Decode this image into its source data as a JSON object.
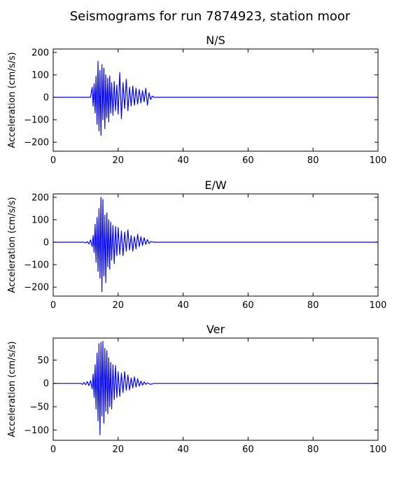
{
  "figure": {
    "title": "Seismograms for run 7874923, station moor"
  },
  "colors": {
    "trace": "#0000ff",
    "axes": "#000000",
    "background": "#ffffff"
  },
  "chart_data": [
    {
      "type": "line",
      "title": "N/S",
      "xlabel": "",
      "ylabel": "Acceleration (cm/s/s)",
      "xlim": [
        0,
        100
      ],
      "ylim": [
        -240,
        215
      ],
      "xticks": [
        0,
        20,
        40,
        60,
        80,
        100
      ],
      "yticks": [
        -200,
        -100,
        0,
        100,
        200
      ],
      "grid": false,
      "series": [
        {
          "x": [
            0,
            11.5,
            12.0,
            12.3,
            12.6,
            12.9,
            13.2,
            13.5,
            13.8,
            14.1,
            14.4,
            14.7,
            15.0,
            15.3,
            15.6,
            15.9,
            16.2,
            16.5,
            16.8,
            17.1,
            17.4,
            17.7,
            18.0,
            18.4,
            18.8,
            19.2,
            19.6,
            20.0,
            20.5,
            21.0,
            21.5,
            22.0,
            22.5,
            23.0,
            23.5,
            24.0,
            24.5,
            25.0,
            25.5,
            26.0,
            26.5,
            27.0,
            27.5,
            28.0,
            28.5,
            29.0,
            29.5,
            30.0,
            30.5,
            31.0,
            100
          ],
          "y": [
            0,
            0,
            45,
            -40,
            60,
            -70,
            95,
            -120,
            160,
            -150,
            120,
            -170,
            145,
            -100,
            130,
            -140,
            100,
            -90,
            85,
            -110,
            95,
            -70,
            65,
            -80,
            70,
            -60,
            55,
            -75,
            110,
            -95,
            65,
            -50,
            80,
            -60,
            45,
            -40,
            50,
            -35,
            40,
            -30,
            35,
            -25,
            30,
            -20,
            40,
            -35,
            20,
            -10,
            5,
            0,
            0
          ]
        }
      ]
    },
    {
      "type": "line",
      "title": "E/W",
      "xlabel": "",
      "ylabel": "Acceleration (cm/s/s)",
      "xlim": [
        0,
        100
      ],
      "ylim": [
        -240,
        215
      ],
      "xticks": [
        0,
        20,
        40,
        60,
        80,
        100
      ],
      "yticks": [
        -200,
        -100,
        0,
        100,
        200
      ],
      "grid": false,
      "series": [
        {
          "x": [
            0,
            9.5,
            10.0,
            10.5,
            11.0,
            11.5,
            12.0,
            12.3,
            12.6,
            12.9,
            13.2,
            13.5,
            13.8,
            14.1,
            14.4,
            14.7,
            15.0,
            15.3,
            15.6,
            15.9,
            16.2,
            16.5,
            16.8,
            17.1,
            17.4,
            17.7,
            18.0,
            18.4,
            18.8,
            19.2,
            19.6,
            20.0,
            20.5,
            21.0,
            21.5,
            22.0,
            22.5,
            23.0,
            23.5,
            24.0,
            24.5,
            25.0,
            25.5,
            26.0,
            26.5,
            27.0,
            27.5,
            28.0,
            28.5,
            29.0,
            29.5,
            30.0,
            31.0,
            100
          ],
          "y": [
            0,
            0,
            -3,
            3,
            -8,
            10,
            -20,
            30,
            -45,
            80,
            -90,
            110,
            -130,
            150,
            -160,
            200,
            -220,
            190,
            -150,
            120,
            -180,
            130,
            -110,
            100,
            -120,
            90,
            -80,
            75,
            -95,
            70,
            -60,
            65,
            -55,
            50,
            -60,
            45,
            -40,
            55,
            -35,
            30,
            -40,
            25,
            -30,
            35,
            -20,
            25,
            -15,
            20,
            -10,
            12,
            -6,
            3,
            0,
            0
          ]
        }
      ]
    },
    {
      "type": "line",
      "title": "Ver",
      "xlabel": "",
      "ylabel": "Acceleration (cm/s/s)",
      "xlim": [
        0,
        100
      ],
      "ylim": [
        -122,
        97
      ],
      "xticks": [
        0,
        20,
        40,
        60,
        80,
        100
      ],
      "yticks": [
        -100,
        -50,
        0,
        50
      ],
      "grid": false,
      "series": [
        {
          "x": [
            0,
            8.5,
            9.0,
            9.5,
            10.0,
            10.5,
            11.0,
            11.5,
            12.0,
            12.3,
            12.6,
            12.9,
            13.2,
            13.5,
            13.8,
            14.1,
            14.4,
            14.7,
            15.0,
            15.3,
            15.6,
            15.9,
            16.2,
            16.5,
            16.8,
            17.1,
            17.4,
            17.7,
            18.0,
            18.4,
            18.8,
            19.2,
            19.6,
            20.0,
            20.5,
            21.0,
            21.5,
            22.0,
            22.5,
            23.0,
            23.5,
            24.0,
            24.5,
            25.0,
            25.5,
            26.0,
            26.5,
            27.0,
            27.5,
            28.0,
            28.5,
            29.0,
            30.0,
            31.0,
            32.0,
            100
          ],
          "y": [
            0,
            0,
            -2,
            2,
            -3,
            4,
            -5,
            6,
            -12,
            20,
            -30,
            40,
            -55,
            65,
            -80,
            85,
            -110,
            88,
            -70,
            90,
            -85,
            75,
            -60,
            70,
            -65,
            55,
            -50,
            45,
            -55,
            40,
            -35,
            38,
            -30,
            25,
            -28,
            22,
            -20,
            25,
            -15,
            18,
            -14,
            12,
            -10,
            14,
            -8,
            10,
            -6,
            5,
            -4,
            3,
            -2,
            1,
            -2,
            0,
            0,
            0
          ]
        }
      ]
    }
  ]
}
